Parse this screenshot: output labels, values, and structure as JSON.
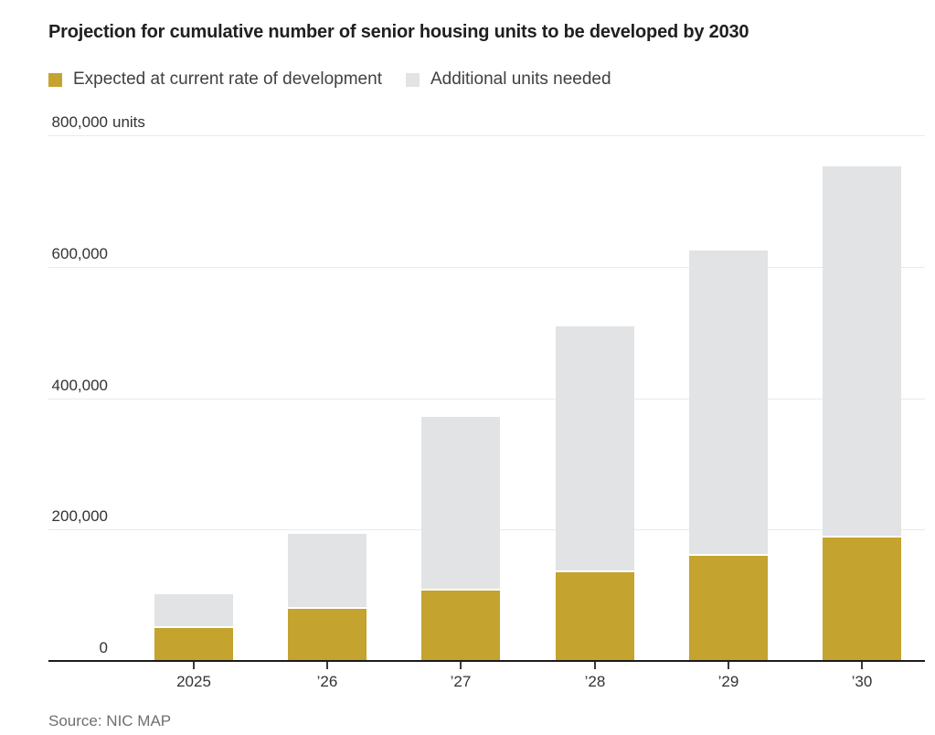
{
  "title": "Projection for cumulative number of senior housing units to be developed by 2030",
  "legend": [
    {
      "label": "Expected at current rate of development",
      "color": "#c4a32e"
    },
    {
      "label": "Additional units needed",
      "color": "#e2e3e4"
    }
  ],
  "source": "Source: NIC MAP",
  "chart_data": {
    "type": "bar",
    "stacked": true,
    "title": "Projection for cumulative number of senior housing units to be developed by 2030",
    "categories": [
      "2025",
      "’26",
      "’27",
      "’28",
      "’29",
      "’30"
    ],
    "series": [
      {
        "name": "Expected at current rate of development",
        "color": "#c4a32e",
        "values": [
          50000,
          79000,
          107000,
          135000,
          160000,
          188000
        ]
      },
      {
        "name": "Additional units needed",
        "color": "#e2e3e4",
        "values": [
          51500,
          114500,
          264500,
          374000,
          465000,
          565000
        ]
      }
    ],
    "totals": [
      101500,
      193500,
      371500,
      509000,
      625000,
      753000
    ],
    "xlabel": "",
    "ylabel": "units",
    "ylim": [
      0,
      800000
    ],
    "y_ticks": [
      {
        "value": 0,
        "label": "0",
        "suffix": ""
      },
      {
        "value": 200000,
        "label": "200,000",
        "suffix": ""
      },
      {
        "value": 400000,
        "label": "400,000",
        "suffix": ""
      },
      {
        "value": 600000,
        "label": "600,000",
        "suffix": ""
      },
      {
        "value": 800000,
        "label": "800,000",
        "suffix": "units"
      }
    ],
    "grid": true,
    "legend_position": "top",
    "source": "Source: NIC MAP"
  }
}
